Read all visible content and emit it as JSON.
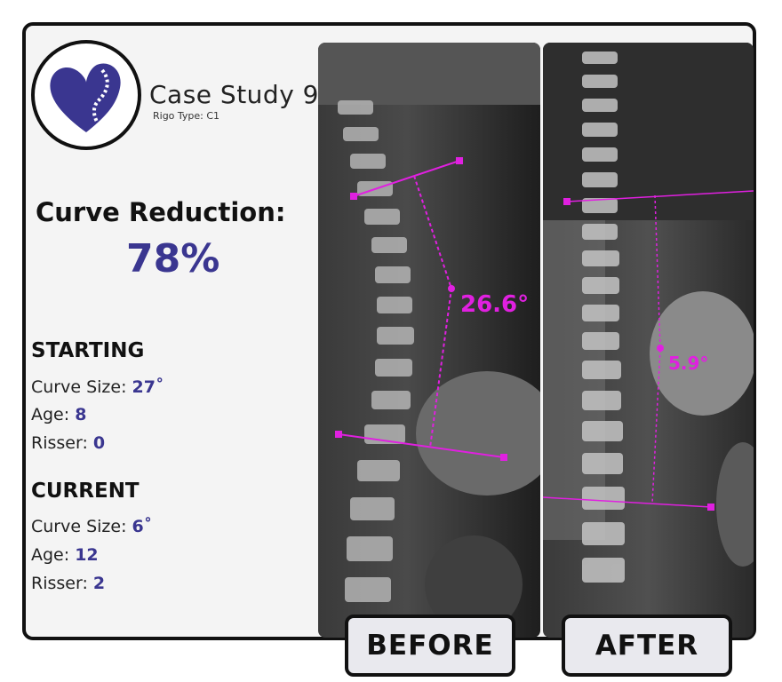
{
  "header": {
    "title": "Case Study 9",
    "subtitle": "Rigo Type: C1"
  },
  "summary": {
    "reduction_label": "Curve Reduction:",
    "reduction_value": "78%"
  },
  "starting": {
    "heading": "STARTING",
    "curve_label": "Curve Size:",
    "curve_value": "27˚",
    "age_label": "Age:",
    "age_value": "8",
    "risser_label": "Risser:",
    "risser_value": "0"
  },
  "current": {
    "heading": "CURRENT",
    "curve_label": "Curve Size:",
    "curve_value": "6˚",
    "age_label": "Age:",
    "age_value": "12",
    "risser_label": "Risser:",
    "risser_value": "2"
  },
  "before": {
    "angle": "26.6°",
    "button_label": "BEFORE"
  },
  "after": {
    "angle": "5.9°",
    "button_label": "AFTER"
  },
  "colors": {
    "accent": "#3a3690",
    "annotation": "#e020e0",
    "border": "#111111"
  },
  "icons": {
    "logo": "heart-spine-icon"
  }
}
